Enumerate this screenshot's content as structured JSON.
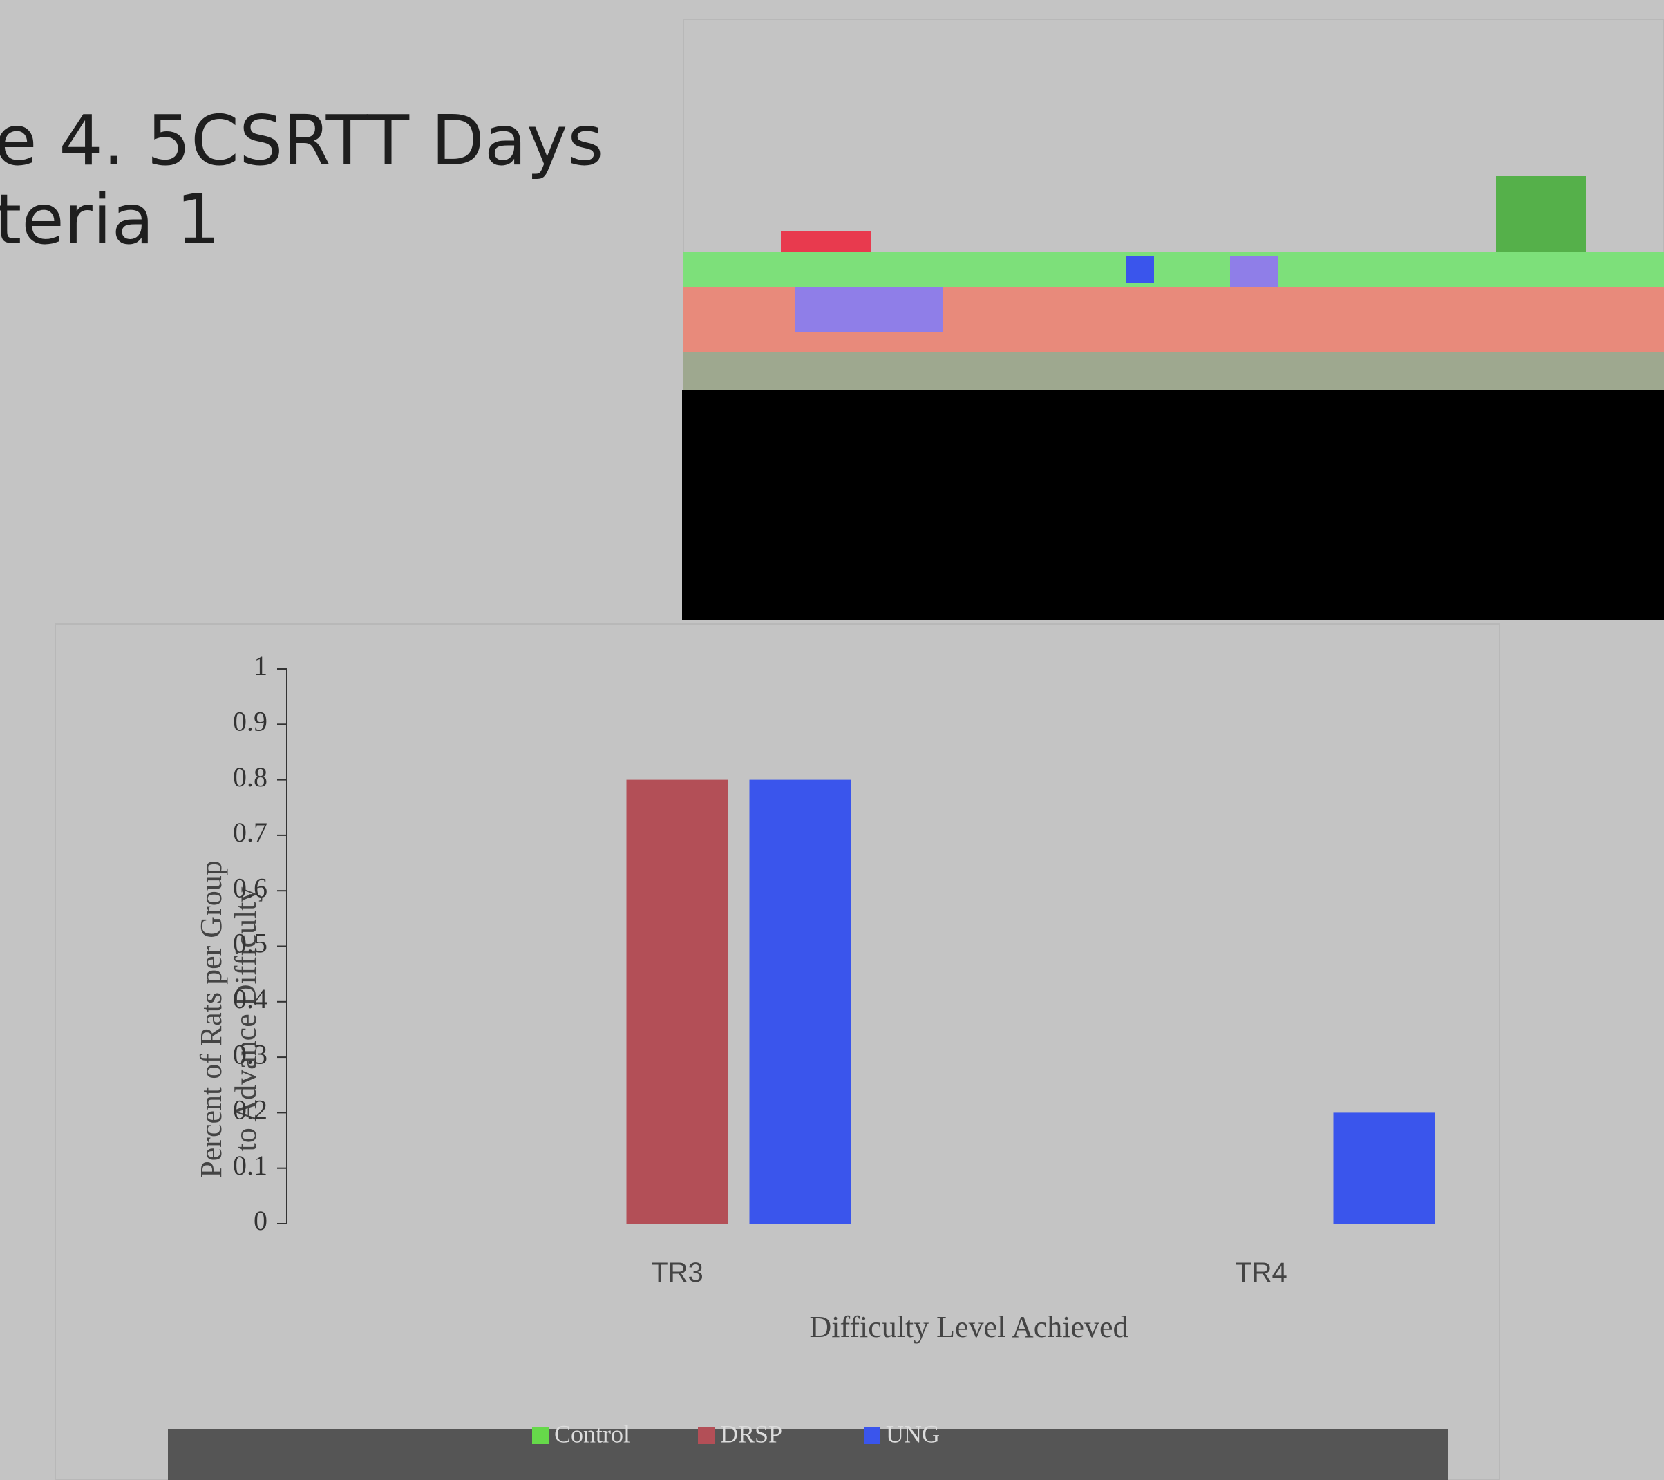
{
  "slide": {
    "title_lines": [
      "e 4. 5CSRTT Days",
      "teria 1"
    ]
  },
  "chart_data": {
    "type": "bar",
    "x_label": "Difficulty Level Achieved",
    "y_label": [
      "Percent of Rats per Group",
      "to Advance Difficulty"
    ],
    "categories": [
      "TR3",
      "TR4"
    ],
    "series": [
      {
        "name": "Control",
        "color": "#66d94a",
        "values": [
          0,
          0
        ]
      },
      {
        "name": "DRSP",
        "color": "#b34f57",
        "values": [
          0.8,
          0
        ]
      },
      {
        "name": "UNG",
        "color": "#3a55ec",
        "values": [
          0.8,
          0.2
        ]
      }
    ],
    "ylim": [
      0,
      1
    ],
    "yticks": [
      0,
      0.1,
      0.2,
      0.3,
      0.4,
      0.5,
      0.6,
      0.7,
      0.8,
      0.9,
      1
    ]
  }
}
